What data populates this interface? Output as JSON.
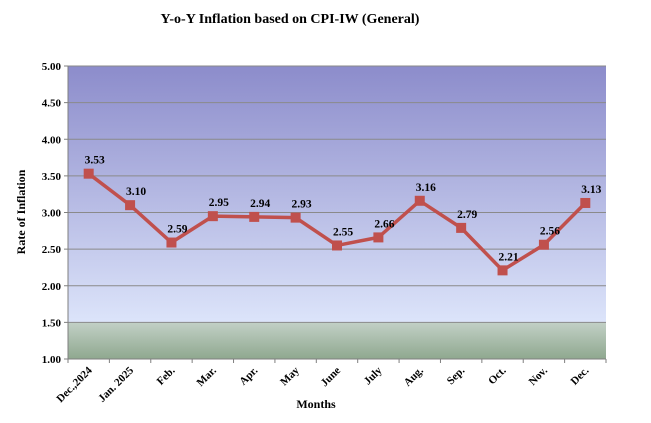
{
  "chart_data": {
    "type": "line",
    "title": "Y-o-Y Inflation based on CPI-IW (General)",
    "xlabel": "Months",
    "ylabel": "Rate of Inflation",
    "categories": [
      "Dec.,2024",
      "Jan. 2025",
      "Feb.",
      "Mar.",
      "Apr.",
      "May",
      "June",
      "July",
      "Aug.",
      "Sep.",
      "Oct.",
      "Nov.",
      "Dec."
    ],
    "series": [
      {
        "values": [
          3.53,
          3.1,
          2.59,
          2.95,
          2.94,
          2.93,
          2.55,
          2.66,
          3.16,
          2.79,
          2.21,
          2.56,
          3.13
        ]
      }
    ],
    "data_labels": [
      "3.53",
      "3.10",
      "2.59",
      "2.95",
      "2.94",
      "2.93",
      "2.55",
      "2.66",
      "3.16",
      "2.79",
      "2.21",
      "2.56",
      "3.13"
    ],
    "ylim": [
      1.0,
      5.0
    ],
    "yticks": [
      "1.00",
      "1.50",
      "2.00",
      "2.50",
      "3.00",
      "3.50",
      "4.00",
      "4.50",
      "5.00"
    ],
    "grid": true,
    "line_color": "#C0504D",
    "marker": "square",
    "background": {
      "upper_top": "#8C8CCB",
      "upper_bottom": "#DCE4FA",
      "lower_top": "#C2D0C6",
      "lower_bottom": "#8FA88F",
      "split_value": 1.5
    }
  }
}
